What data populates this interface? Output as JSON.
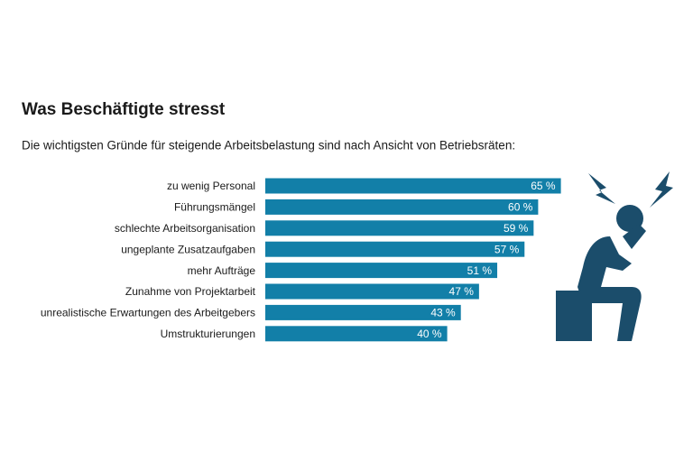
{
  "chart_data": {
    "type": "bar",
    "orientation": "horizontal",
    "title": "Was Beschäftigte stresst",
    "subtitle": "Die wichtigsten Gründe für steigende Arbeitsbelastung sind nach Ansicht von Betriebsräten:",
    "categories": [
      "zu wenig Personal",
      "Führungsmängel",
      "schlechte Arbeitsorganisation",
      "ungeplante Zusatzaufgaben",
      "mehr Aufträge",
      "Zunahme von Projektarbeit",
      "unrealistische Erwartungen des Arbeitgebers",
      "Umstrukturierungen"
    ],
    "values": [
      65,
      60,
      59,
      57,
      51,
      47,
      43,
      40
    ],
    "value_labels": [
      "65 %",
      "60 %",
      "59 %",
      "57 %",
      "51 %",
      "47 %",
      "43 %",
      "40 %"
    ],
    "color": "#127fa8"
  }
}
